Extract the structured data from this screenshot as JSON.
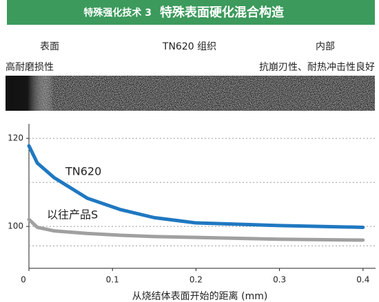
{
  "header": {
    "prefix": "特殊强化技术 3",
    "title": "特殊表面硬化混合构造"
  },
  "structure": {
    "left": "表面",
    "middle": "TN620 组织",
    "right": "内部",
    "left_note": "高耐磨损性",
    "right_note": "抗崩刃性、耐热冲击性良好"
  },
  "chart_data": {
    "type": "line",
    "x_label": "从烧结体表面开始的距离 (mm)",
    "x": [
      0,
      0.01,
      0.03,
      0.07,
      0.11,
      0.15,
      0.2,
      0.3,
      0.4
    ],
    "series": [
      {
        "name": "TN620",
        "color": "#1f78c1",
        "values": [
          118.3,
          114.4,
          111.1,
          106.4,
          103.8,
          102.0,
          100.8,
          100.2,
          99.8
        ]
      },
      {
        "name": "以往产品S",
        "color": "#a0a0a0",
        "values": [
          101.6,
          99.8,
          99.0,
          98.4,
          98.0,
          97.7,
          97.5,
          97.1,
          96.9
        ]
      }
    ],
    "xlim": [
      0,
      0.415
    ],
    "ylim": [
      90.5,
      123.3
    ],
    "xticks": [
      0,
      0.1,
      0.2,
      0.3,
      0.4
    ],
    "yticks": [
      100,
      120
    ],
    "ygrid": [
      95.6,
      100,
      110,
      120
    ]
  }
}
